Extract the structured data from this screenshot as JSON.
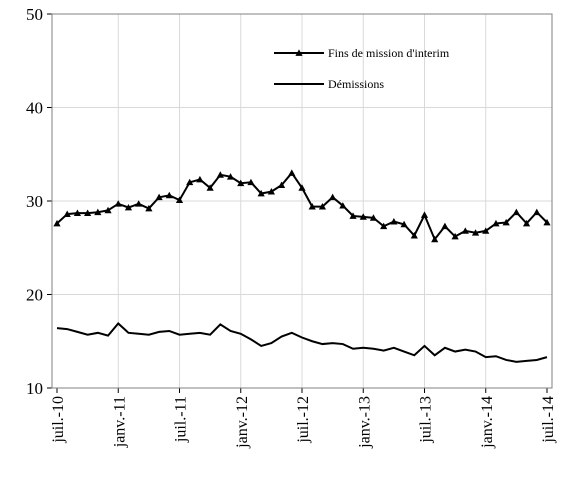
{
  "chart_data": {
    "type": "line",
    "categories": [
      "juil.-10",
      null,
      null,
      null,
      null,
      null,
      "janv.-11",
      null,
      null,
      null,
      null,
      null,
      "juil.-11",
      null,
      null,
      null,
      null,
      null,
      "janv.-12",
      null,
      null,
      null,
      null,
      null,
      "juil.-12",
      null,
      null,
      null,
      null,
      null,
      "janv.-13",
      null,
      null,
      null,
      null,
      null,
      "juil.-13",
      null,
      null,
      null,
      null,
      null,
      "janv.-14",
      null,
      null,
      null,
      null,
      null,
      "juil.-14"
    ],
    "series": [
      {
        "name": "Fins de mission d'interim",
        "color": "#000000",
        "marker": "triangle",
        "values": [
          27.6,
          28.6,
          28.7,
          28.7,
          28.8,
          29.0,
          29.7,
          29.3,
          29.7,
          29.2,
          30.4,
          30.6,
          30.1,
          32.0,
          32.3,
          31.4,
          32.8,
          32.6,
          31.9,
          32.0,
          30.8,
          31.0,
          31.7,
          33.0,
          31.4,
          29.4,
          29.4,
          30.4,
          29.5,
          28.4,
          28.3,
          28.2,
          27.3,
          27.8,
          27.5,
          26.3,
          28.5,
          25.9,
          27.3,
          26.2,
          26.8,
          26.6,
          26.8,
          27.6,
          27.7,
          28.8,
          27.6,
          28.8,
          27.7
        ]
      },
      {
        "name": "Démissions",
        "color": "#000000",
        "values": [
          16.4,
          16.3,
          16.0,
          15.7,
          15.9,
          15.6,
          16.9,
          15.9,
          15.8,
          15.7,
          16.0,
          16.1,
          15.7,
          15.8,
          15.9,
          15.7,
          16.8,
          16.1,
          15.8,
          15.2,
          14.5,
          14.8,
          15.5,
          15.9,
          15.4,
          15.0,
          14.7,
          14.8,
          14.7,
          14.2,
          14.3,
          14.2,
          14.0,
          14.3,
          13.9,
          13.5,
          14.5,
          13.5,
          14.3,
          13.9,
          14.1,
          13.9,
          13.3,
          13.4,
          13.0,
          12.8,
          12.9,
          13.0,
          13.3
        ]
      }
    ],
    "ylim": [
      10,
      50
    ],
    "yticks": [
      10,
      20,
      30,
      40,
      50
    ],
    "grid": true,
    "legend": "upper right"
  }
}
